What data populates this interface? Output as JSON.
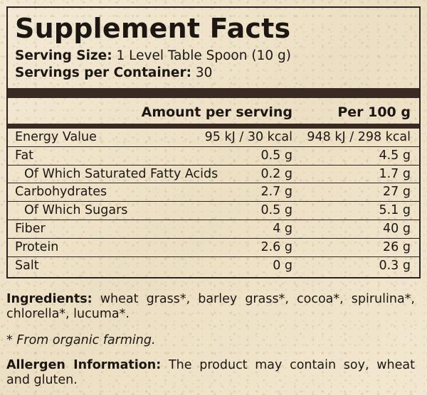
{
  "facts": {
    "title": "Supplement Facts",
    "serving_size_label": "Serving Size:",
    "serving_size_value": "1 Level Table Spoon (10 g)",
    "servings_label": "Servings per Container:",
    "servings_value": "30",
    "col_amount": "Amount per serving",
    "col_per100": "Per 100 g",
    "rows": [
      {
        "name": "Energy Value",
        "serving": "95 kJ / 30 kcal",
        "per100": "948 kJ / 298 kcal"
      },
      {
        "name": "Fat",
        "serving": "0.5 g",
        "per100": "4.5 g"
      },
      {
        "name": "Of Which Saturated Fatty Acids",
        "serving": "0.2 g",
        "per100": "1.7 g"
      },
      {
        "name": "Carbohydrates",
        "serving": "2.7 g",
        "per100": "27 g"
      },
      {
        "name": "Of Which Sugars",
        "serving": "0.5 g",
        "per100": "5.1 g"
      },
      {
        "name": "Fiber",
        "serving": "4 g",
        "per100": "40 g"
      },
      {
        "name": "Protein",
        "serving": "2.6 g",
        "per100": "26 g"
      },
      {
        "name": "Salt",
        "serving": "0 g",
        "per100": "0.3 g"
      }
    ]
  },
  "ingredients": {
    "label": "Ingredients:",
    "text": " wheat grass*, barley grass*, cocoa*, spirulina*, chlorella*, lucuma*."
  },
  "organic_note": "* From organic farming.",
  "allergen": {
    "label": "Allergen Information:",
    "text": " The product may contain soy, wheat and gluten."
  },
  "colors": {
    "background": "#f1e6cf",
    "bar": "#3a2a24",
    "text": "#1c1712"
  }
}
